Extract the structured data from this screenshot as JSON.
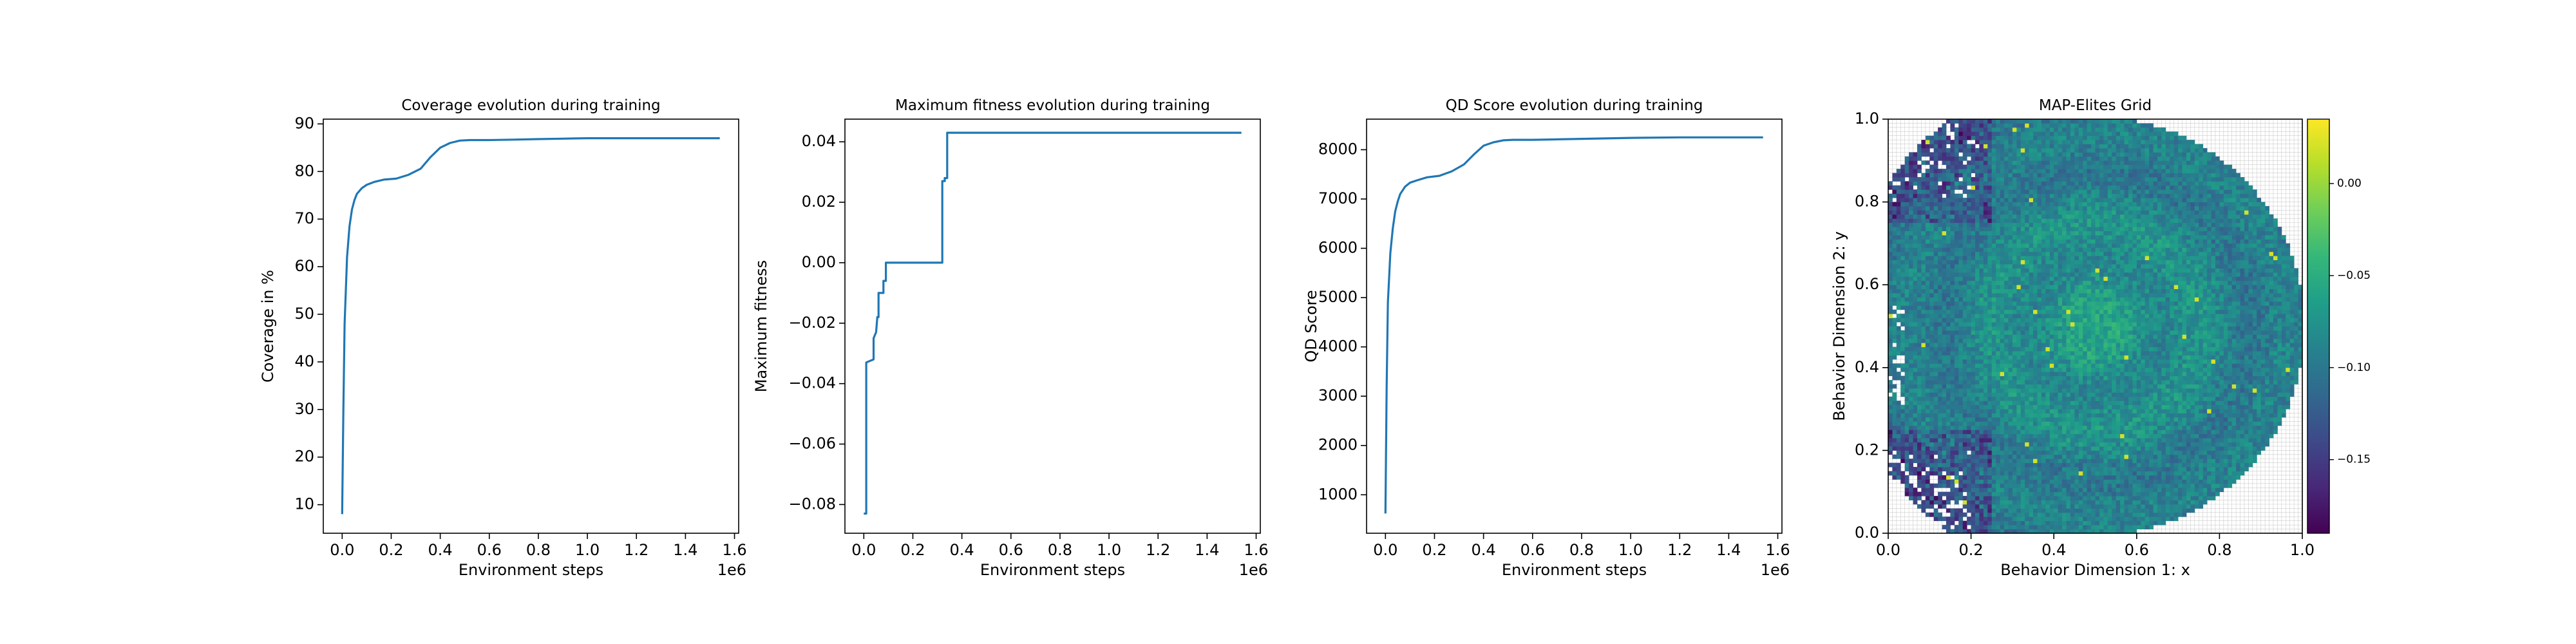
{
  "colors": {
    "line": "#1f77b4",
    "axes": "#000000",
    "gridcell": "#cccccc",
    "viridis": [
      "#440154",
      "#482878",
      "#3e4989",
      "#31688e",
      "#26828e",
      "#1f9e89",
      "#35b779",
      "#6ece58",
      "#b5de2b",
      "#fde725"
    ]
  },
  "chart_data": [
    {
      "type": "line",
      "title": "Coverage evolution during training",
      "xlabel": "Environment steps",
      "ylabel": "Coverage in %",
      "x_offset_label": "1e6",
      "xlim": [
        -0.077,
        1.617
      ],
      "ylim": [
        4.0,
        91.0
      ],
      "xticks": [
        0.0,
        0.2,
        0.4,
        0.6,
        0.8,
        1.0,
        1.2,
        1.4,
        1.6
      ],
      "xtick_labels": [
        "0.0",
        "0.2",
        "0.4",
        "0.6",
        "0.8",
        "1.0",
        "1.2",
        "1.4",
        "1.6"
      ],
      "yticks": [
        10,
        20,
        30,
        40,
        50,
        60,
        70,
        80,
        90
      ],
      "ytick_labels": [
        "10",
        "20",
        "30",
        "40",
        "50",
        "60",
        "70",
        "80",
        "90"
      ],
      "series": [
        {
          "x": [
            0.0,
            0.005,
            0.01,
            0.02,
            0.03,
            0.04,
            0.05,
            0.06,
            0.08,
            0.1,
            0.13,
            0.17,
            0.22,
            0.27,
            0.32,
            0.36,
            0.4,
            0.44,
            0.48,
            0.52,
            0.6,
            0.7,
            0.8,
            0.9,
            1.0,
            1.2,
            1.4,
            1.54
          ],
          "y": [
            8.0,
            30.0,
            48.0,
            62.0,
            68.5,
            72.0,
            74.0,
            75.3,
            76.5,
            77.2,
            77.8,
            78.3,
            78.5,
            79.3,
            80.6,
            83.0,
            85.0,
            86.0,
            86.5,
            86.6,
            86.6,
            86.7,
            86.8,
            86.9,
            87.0,
            87.0,
            87.0,
            87.0
          ]
        }
      ]
    },
    {
      "type": "line",
      "title": "Maximum fitness evolution during training",
      "xlabel": "Environment steps",
      "ylabel": "Maximum fitness",
      "x_offset_label": "1e6",
      "xlim": [
        -0.077,
        1.617
      ],
      "ylim": [
        -0.0895,
        0.0475
      ],
      "xticks": [
        0.0,
        0.2,
        0.4,
        0.6,
        0.8,
        1.0,
        1.2,
        1.4,
        1.6
      ],
      "xtick_labels": [
        "0.0",
        "0.2",
        "0.4",
        "0.6",
        "0.8",
        "1.0",
        "1.2",
        "1.4",
        "1.6"
      ],
      "yticks": [
        -0.08,
        -0.06,
        -0.04,
        -0.02,
        0.0,
        0.02,
        0.04
      ],
      "ytick_labels": [
        "−0.08",
        "−0.06",
        "−0.04",
        "−0.02",
        "0.00",
        "0.02",
        "0.04"
      ],
      "series": [
        {
          "x": [
            0.0,
            0.01,
            0.01,
            0.04,
            0.04,
            0.05,
            0.055,
            0.06,
            0.06,
            0.08,
            0.08,
            0.09,
            0.09,
            0.32,
            0.32,
            0.33,
            0.33,
            0.34,
            0.34,
            1.0,
            1.54
          ],
          "y": [
            -0.083,
            -0.083,
            -0.033,
            -0.032,
            -0.025,
            -0.023,
            -0.018,
            -0.018,
            -0.01,
            -0.01,
            -0.006,
            -0.006,
            0.0,
            0.0,
            0.027,
            0.027,
            0.028,
            0.028,
            0.043,
            0.043,
            0.043
          ]
        }
      ]
    },
    {
      "type": "line",
      "title": "QD Score evolution during training",
      "xlabel": "Environment steps",
      "ylabel": "QD Score",
      "x_offset_label": "1e6",
      "xlim": [
        -0.077,
        1.617
      ],
      "ylim": [
        220,
        8620
      ],
      "xticks": [
        0.0,
        0.2,
        0.4,
        0.6,
        0.8,
        1.0,
        1.2,
        1.4,
        1.6
      ],
      "xtick_labels": [
        "0.0",
        "0.2",
        "0.4",
        "0.6",
        "0.8",
        "1.0",
        "1.2",
        "1.4",
        "1.6"
      ],
      "yticks": [
        1000,
        2000,
        3000,
        4000,
        5000,
        6000,
        7000,
        8000
      ],
      "ytick_labels": [
        "1000",
        "2000",
        "3000",
        "4000",
        "5000",
        "6000",
        "7000",
        "8000"
      ],
      "series": [
        {
          "x": [
            0.0,
            0.005,
            0.01,
            0.02,
            0.03,
            0.04,
            0.05,
            0.06,
            0.08,
            0.1,
            0.13,
            0.17,
            0.22,
            0.27,
            0.32,
            0.36,
            0.4,
            0.44,
            0.48,
            0.52,
            0.6,
            0.7,
            0.8,
            0.9,
            1.0,
            1.2,
            1.4,
            1.54
          ],
          "y": [
            620,
            3200,
            4900,
            5900,
            6400,
            6750,
            6950,
            7100,
            7250,
            7330,
            7380,
            7440,
            7470,
            7560,
            7700,
            7900,
            8080,
            8150,
            8190,
            8200,
            8200,
            8210,
            8220,
            8230,
            8240,
            8250,
            8250,
            8250
          ]
        }
      ]
    },
    {
      "type": "heatmap",
      "title": "MAP-Elites Grid",
      "xlabel": "Behavior Dimension 1: x",
      "ylabel": "Behavior Dimension 2: y",
      "xlim": [
        0.0,
        1.0
      ],
      "ylim": [
        0.0,
        1.0
      ],
      "grid_cells": 100,
      "xticks": [
        0.0,
        0.2,
        0.4,
        0.6,
        0.8,
        1.0
      ],
      "xtick_labels": [
        "0.0",
        "0.2",
        "0.4",
        "0.6",
        "0.8",
        "1.0"
      ],
      "yticks": [
        0.0,
        0.2,
        0.4,
        0.6,
        0.8,
        1.0
      ],
      "ytick_labels": [
        "0.0",
        "0.2",
        "0.4",
        "0.6",
        "0.8",
        "1.0"
      ],
      "colormap": "viridis",
      "colorbar_range": [
        -0.19,
        0.035
      ],
      "colorbar_ticks": [
        0.0,
        -0.05,
        -0.1,
        -0.15
      ],
      "colorbar_tick_labels": [
        "0.00",
        "−0.05",
        "−0.10",
        "−0.15"
      ],
      "value_center": -0.065,
      "value_outer": -0.1
    }
  ]
}
